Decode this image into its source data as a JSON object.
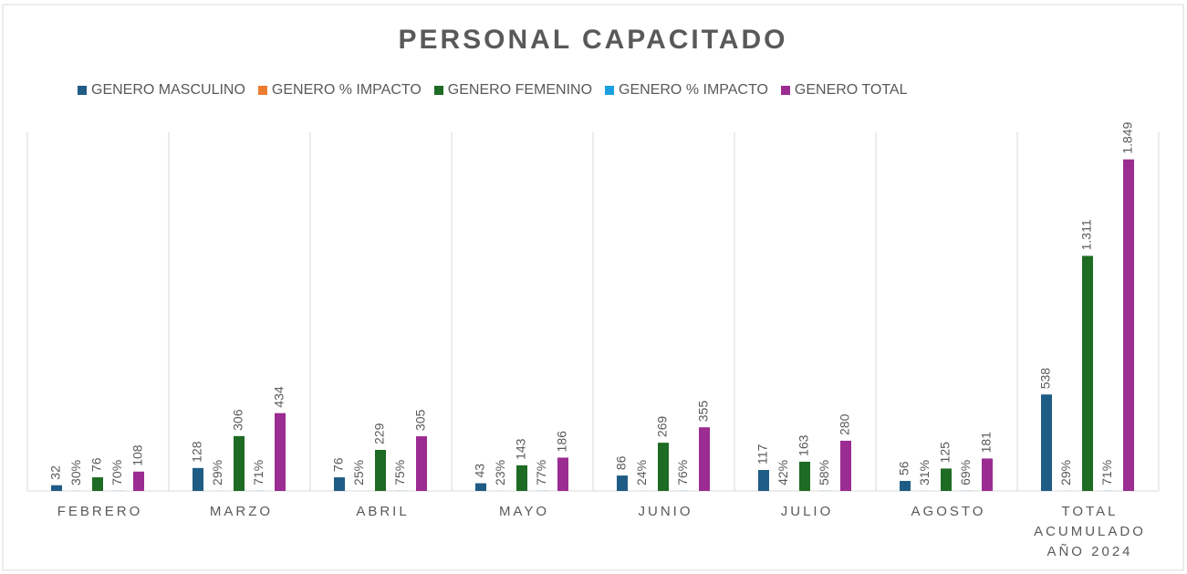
{
  "chart_data": {
    "type": "bar",
    "title": "PERSONAL CAPACITADO",
    "categories": [
      "FEBRERO",
      "MARZO",
      "ABRIL",
      "MAYO",
      "JUNIO",
      "JULIO",
      "AGOSTO",
      "TOTAL ACUMULADO AÑO 2024"
    ],
    "series": [
      {
        "name": "GENERO MASCULINO",
        "color": "#1f5c85",
        "values": [
          32,
          128,
          76,
          43,
          86,
          117,
          56,
          538
        ]
      },
      {
        "name": "GENERO % IMPACTO",
        "color": "#ed7d31",
        "values": [
          0.3,
          0.29,
          0.25,
          0.23,
          0.24,
          0.42,
          0.31,
          0.29
        ],
        "value_labels": [
          "30%",
          "29%",
          "25%",
          "23%",
          "24%",
          "42%",
          "31%",
          "29%"
        ]
      },
      {
        "name": "GENERO FEMENINO",
        "color": "#1e6b24",
        "values": [
          76,
          306,
          229,
          143,
          269,
          163,
          125,
          1311
        ],
        "value_labels": [
          "76",
          "306",
          "229",
          "143",
          "269",
          "163",
          "125",
          "1.311"
        ]
      },
      {
        "name": "GENERO % IMPACTO",
        "color": "#1aa0e0",
        "values": [
          0.7,
          0.71,
          0.75,
          0.77,
          0.76,
          0.58,
          0.69,
          0.71
        ],
        "value_labels": [
          "70%",
          "71%",
          "75%",
          "77%",
          "76%",
          "58%",
          "69%",
          "71%"
        ]
      },
      {
        "name": "GENERO TOTAL",
        "color": "#9b2c91",
        "values": [
          108,
          434,
          305,
          186,
          355,
          280,
          181,
          1849
        ],
        "value_labels": [
          "108",
          "434",
          "305",
          "186",
          "355",
          "280",
          "181",
          "1.849"
        ]
      }
    ],
    "ylim": [
      0,
      2000
    ]
  }
}
